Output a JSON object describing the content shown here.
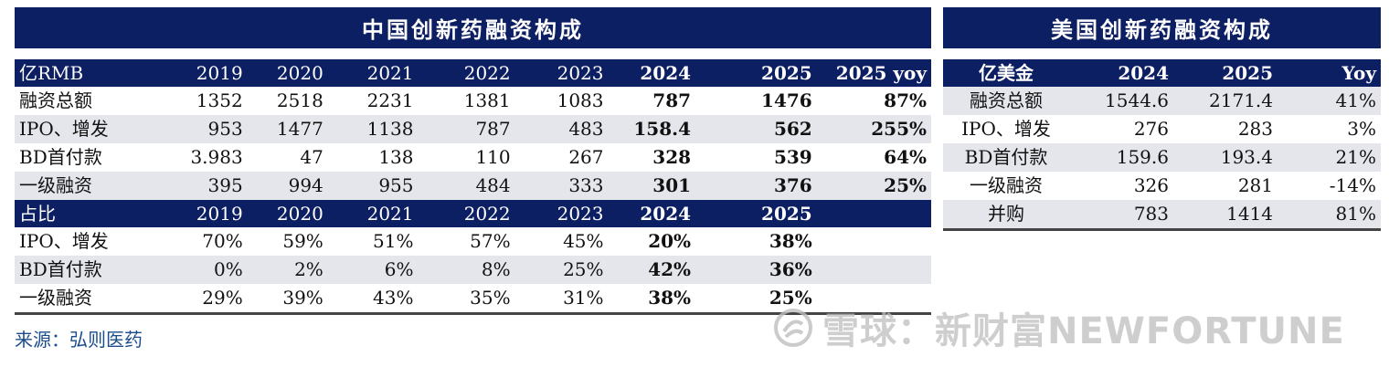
{
  "cn_table": {
    "title": "中国创新药融资构成",
    "header": [
      "亿RMB",
      "2019",
      "2020",
      "2021",
      "2022",
      "2023",
      "2024",
      "2025",
      "2025 yoy"
    ],
    "rows": [
      [
        "融资总额",
        "1352",
        "2518",
        "2231",
        "1381",
        "1083",
        "787",
        "1476",
        "87%"
      ],
      [
        "IPO、增发",
        "953",
        "1477",
        "1138",
        "787",
        "483",
        "158.4",
        "562",
        "255%"
      ],
      [
        "BD首付款",
        "3.983",
        "47",
        "138",
        "110",
        "267",
        "328",
        "539",
        "64%"
      ],
      [
        "一级融资",
        "395",
        "994",
        "955",
        "484",
        "333",
        "301",
        "376",
        "25%"
      ]
    ],
    "header2": [
      "占比",
      "2019",
      "2020",
      "2021",
      "2022",
      "2023",
      "2024",
      "2025",
      ""
    ],
    "rows2": [
      [
        "IPO、增发",
        "70%",
        "59%",
        "51%",
        "57%",
        "45%",
        "20%",
        "38%",
        ""
      ],
      [
        "BD首付款",
        "0%",
        "2%",
        "6%",
        "8%",
        "25%",
        "42%",
        "36%",
        ""
      ],
      [
        "一级融资",
        "29%",
        "39%",
        "43%",
        "35%",
        "31%",
        "38%",
        "25%",
        ""
      ]
    ]
  },
  "us_table": {
    "title": "美国创新药融资构成",
    "header": [
      "亿美金",
      "2024",
      "2025",
      "Yoy"
    ],
    "rows": [
      [
        "融资总额",
        "1544.6",
        "2171.4",
        "41%"
      ],
      [
        "IPO、增发",
        "276",
        "283",
        "3%"
      ],
      [
        "BD首付款",
        "159.6",
        "193.4",
        "21%"
      ],
      [
        "一级融资",
        "326",
        "281",
        "-14%"
      ],
      [
        "并购",
        "783",
        "1414",
        "81%"
      ]
    ]
  },
  "source_text": "来源：弘则医药",
  "watermark_text": "雪球：新财富NEWFORTUNE",
  "colors": {
    "header_bg": "#0d1f63",
    "alt_row": "#e4e6ec",
    "source": "#1a4c8c"
  }
}
